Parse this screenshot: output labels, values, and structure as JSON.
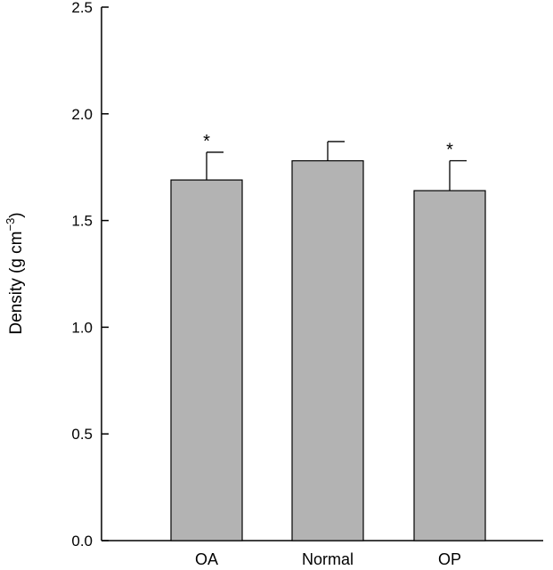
{
  "chart_data": {
    "type": "bar",
    "categories": [
      "OA",
      "Normal",
      "OP"
    ],
    "values": [
      1.69,
      1.78,
      1.64
    ],
    "error_upper": [
      0.13,
      0.09,
      0.14
    ],
    "annotations": [
      "*",
      "",
      "*"
    ],
    "ylabel": "Density (g cm",
    "ylabel_superscript": "−3",
    "ylabel_close": ")",
    "ylim": [
      0,
      2.5
    ],
    "yticks": [
      0.0,
      0.5,
      1.0,
      1.5,
      2.0,
      2.5
    ],
    "ytick_labels": [
      "0.0",
      "0.5",
      "1.0",
      "1.5",
      "2.0",
      "2.5"
    ],
    "grid": false,
    "bar_color": "#b3b3b3",
    "edge_color": "#000000"
  }
}
